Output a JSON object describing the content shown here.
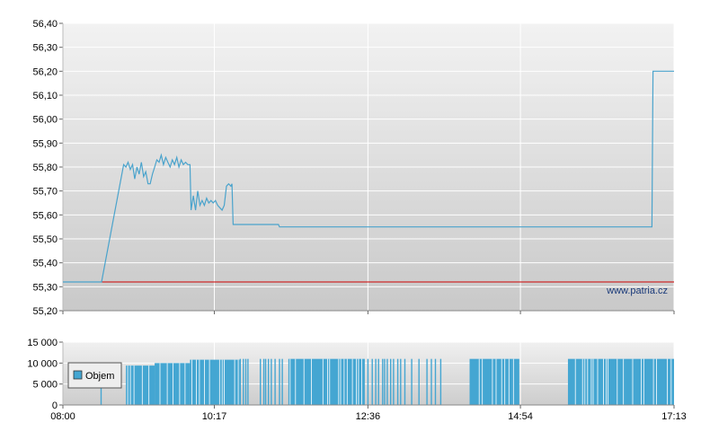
{
  "watermark": "www.patria.cz",
  "colors": {
    "price_line": "#4aa3cc",
    "reference_line": "#cc0000",
    "volume_bar": "#44a6d2",
    "grid": "#ffffff"
  },
  "chart_data": [
    {
      "type": "line",
      "title": "",
      "xlabel": "",
      "ylabel": "",
      "x_range": [
        "08:00",
        "17:13"
      ],
      "ylim": [
        55.2,
        56.4
      ],
      "y_ticks": [
        "55,20",
        "55,30",
        "55,40",
        "55,50",
        "55,60",
        "55,70",
        "55,80",
        "55,90",
        "56,00",
        "56,10",
        "56,20",
        "56,30",
        "56,40"
      ],
      "x_ticks": [
        "08:00",
        "10:17",
        "12:36",
        "14:54",
        "17:13"
      ],
      "reference_line": {
        "value": 55.32
      },
      "grid": true,
      "background": "vertical gradient light grey",
      "series": [
        {
          "points": [
            [
              "08:00",
              55.32
            ],
            [
              "08:35",
              55.32
            ],
            [
              "08:55",
              55.81
            ],
            [
              "08:57",
              55.8
            ],
            [
              "08:59",
              55.82
            ],
            [
              "09:01",
              55.79
            ],
            [
              "09:03",
              55.81
            ],
            [
              "09:05",
              55.75
            ],
            [
              "09:07",
              55.8
            ],
            [
              "09:09",
              55.77
            ],
            [
              "09:11",
              55.82
            ],
            [
              "09:13",
              55.76
            ],
            [
              "09:15",
              55.78
            ],
            [
              "09:17",
              55.73
            ],
            [
              "09:19",
              55.73
            ],
            [
              "09:21",
              55.77
            ],
            [
              "09:23",
              55.8
            ],
            [
              "09:25",
              55.83
            ],
            [
              "09:27",
              55.82
            ],
            [
              "09:29",
              55.85
            ],
            [
              "09:31",
              55.81
            ],
            [
              "09:33",
              55.84
            ],
            [
              "09:35",
              55.82
            ],
            [
              "09:37",
              55.8
            ],
            [
              "09:39",
              55.83
            ],
            [
              "09:41",
              55.81
            ],
            [
              "09:43",
              55.84
            ],
            [
              "09:45",
              55.8
            ],
            [
              "09:47",
              55.83
            ],
            [
              "09:49",
              55.81
            ],
            [
              "09:51",
              55.82
            ],
            [
              "09:53",
              55.81
            ],
            [
              "09:55",
              55.81
            ],
            [
              "09:56",
              55.62
            ],
            [
              "09:58",
              55.68
            ],
            [
              "10:00",
              55.62
            ],
            [
              "10:02",
              55.7
            ],
            [
              "10:04",
              55.64
            ],
            [
              "10:06",
              55.66
            ],
            [
              "10:08",
              55.64
            ],
            [
              "10:10",
              55.67
            ],
            [
              "10:12",
              55.65
            ],
            [
              "10:14",
              55.66
            ],
            [
              "10:16",
              55.65
            ],
            [
              "10:18",
              55.66
            ],
            [
              "10:20",
              55.64
            ],
            [
              "10:22",
              55.63
            ],
            [
              "10:24",
              55.62
            ],
            [
              "10:26",
              55.64
            ],
            [
              "10:28",
              55.72
            ],
            [
              "10:30",
              55.73
            ],
            [
              "10:32",
              55.72
            ],
            [
              "10:33",
              55.73
            ],
            [
              "10:34",
              55.56
            ],
            [
              "11:15",
              55.56
            ],
            [
              "11:16",
              55.55
            ],
            [
              "16:53",
              55.55
            ],
            [
              "16:54",
              56.2
            ],
            [
              "17:13",
              56.2
            ]
          ]
        }
      ]
    },
    {
      "type": "bar",
      "title": "",
      "xlabel": "",
      "ylabel": "",
      "x_range": [
        "08:00",
        "17:13"
      ],
      "ylim": [
        0,
        15000
      ],
      "y_ticks": [
        "0",
        "5 000",
        "10 000",
        "15 000"
      ],
      "x_ticks": [
        "08:00",
        "10:17",
        "12:36",
        "14:54",
        "17:13"
      ],
      "legend": {
        "label": "Objem",
        "position": "left"
      },
      "series": [
        {
          "name": "Objem",
          "segments": [
            {
              "start": "08:34",
              "end": "08:36",
              "level": "sparse",
              "max": 8500
            },
            {
              "start": "08:57",
              "end": "09:23",
              "level": "dense",
              "max": 9400
            },
            {
              "start": "09:23",
              "end": "09:55",
              "level": "dense",
              "max": 10000
            },
            {
              "start": "09:55",
              "end": "10:40",
              "level": "dense",
              "max": 10800
            },
            {
              "start": "10:40",
              "end": "11:20",
              "level": "sparse",
              "max": 11000
            },
            {
              "start": "11:24",
              "end": "12:32",
              "level": "dense",
              "max": 11000
            },
            {
              "start": "12:32",
              "end": "13:45",
              "level": "sparse",
              "max": 11000
            },
            {
              "start": "14:08",
              "end": "14:53",
              "level": "dense",
              "max": 11000
            },
            {
              "start": "15:37",
              "end": "16:34",
              "level": "dense",
              "max": 11000
            },
            {
              "start": "16:34",
              "end": "17:13",
              "level": "dense",
              "max": 11000
            }
          ]
        }
      ]
    }
  ]
}
